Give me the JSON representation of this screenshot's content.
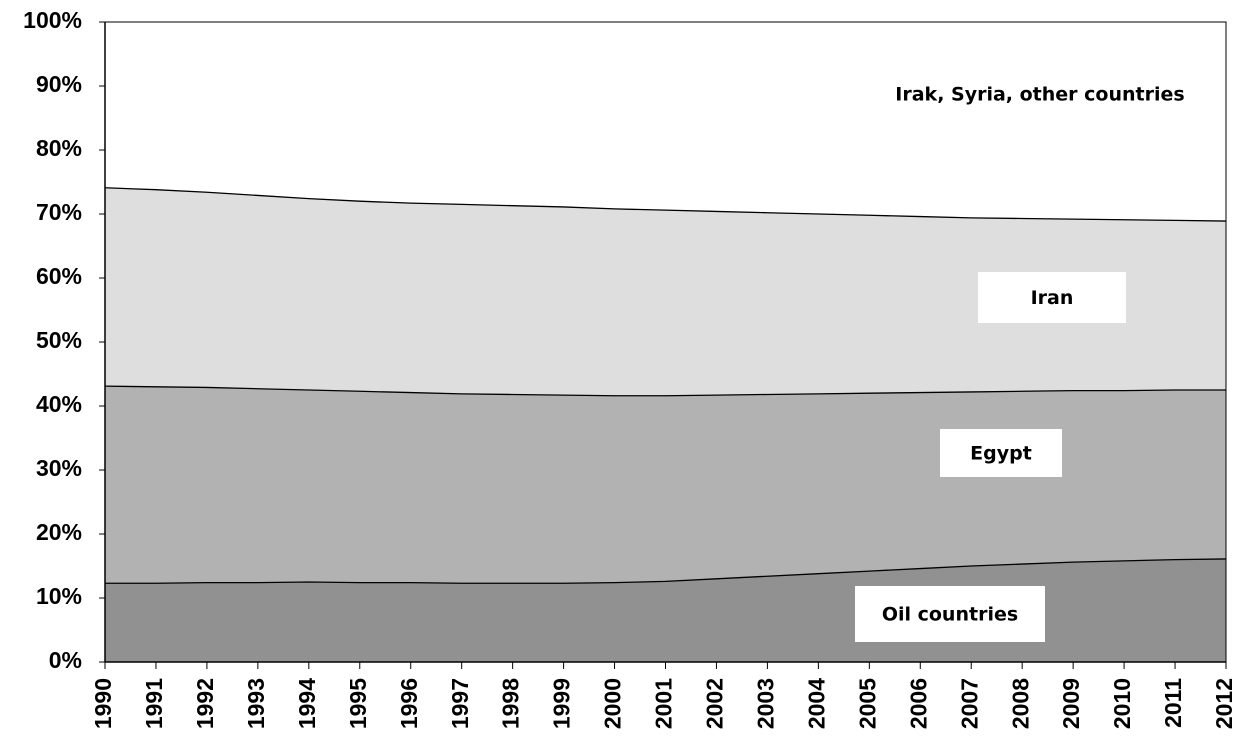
{
  "chart_data": {
    "type": "stacked-area",
    "categories": [
      "1990",
      "1991",
      "1992",
      "1993",
      "1994",
      "1995",
      "1996",
      "1997",
      "1998",
      "1999",
      "2000",
      "2001",
      "2002",
      "2003",
      "2004",
      "2005",
      "2006",
      "2007",
      "2008",
      "2009",
      "2010",
      "2011",
      "2012"
    ],
    "series": [
      {
        "name": "Oil countries",
        "color": "#919191",
        "values": [
          12.3,
          12.3,
          12.4,
          12.4,
          12.5,
          12.4,
          12.4,
          12.3,
          12.3,
          12.3,
          12.4,
          12.6,
          13.0,
          13.4,
          13.8,
          14.2,
          14.6,
          15.0,
          15.3,
          15.6,
          15.8,
          16.0,
          16.1
        ]
      },
      {
        "name": "Egypt",
        "color": "#b2b2b2",
        "values": [
          30.8,
          30.7,
          30.5,
          30.3,
          30.0,
          29.9,
          29.7,
          29.6,
          29.5,
          29.4,
          29.2,
          29.0,
          28.7,
          28.4,
          28.1,
          27.8,
          27.5,
          27.2,
          27.0,
          26.8,
          26.6,
          26.5,
          26.4
        ]
      },
      {
        "name": "Iran",
        "color": "#dedede",
        "values": [
          31.0,
          30.8,
          30.5,
          30.2,
          29.9,
          29.7,
          29.6,
          29.6,
          29.5,
          29.4,
          29.2,
          29.0,
          28.7,
          28.4,
          28.1,
          27.8,
          27.5,
          27.2,
          27.0,
          26.8,
          26.7,
          26.5,
          26.4
        ]
      },
      {
        "name": "Irak, Syria, other countries",
        "color": "#ffffff",
        "values": [
          25.9,
          26.2,
          26.6,
          27.1,
          27.6,
          28.0,
          28.3,
          28.5,
          28.7,
          28.9,
          29.2,
          29.4,
          29.6,
          29.8,
          30.0,
          30.2,
          30.4,
          30.6,
          30.7,
          30.8,
          30.9,
          31.0,
          31.1
        ]
      }
    ],
    "ylim": [
      0,
      100
    ],
    "yticks": [
      {
        "value": 0,
        "label": "0%"
      },
      {
        "value": 10,
        "label": "10%"
      },
      {
        "value": 20,
        "label": "20%"
      },
      {
        "value": 30,
        "label": "30%"
      },
      {
        "value": 40,
        "label": "40%"
      },
      {
        "value": 50,
        "label": "50%"
      },
      {
        "value": 60,
        "label": "60%"
      },
      {
        "value": 70,
        "label": "70%"
      },
      {
        "value": 80,
        "label": "80%"
      },
      {
        "value": 90,
        "label": "90%"
      },
      {
        "value": 100,
        "label": "100%"
      }
    ]
  }
}
